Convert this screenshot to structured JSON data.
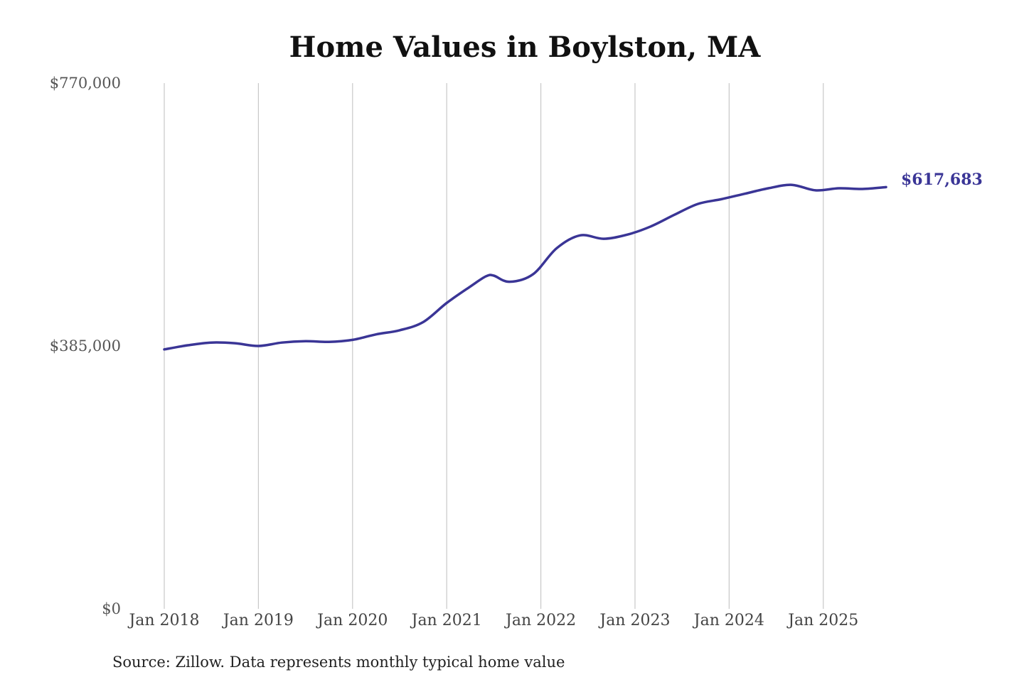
{
  "chart_data": {
    "type": "line",
    "title": "Home Values in Boylston, MA",
    "xlabel": "",
    "ylabel": "",
    "source": "Source: Zillow. Data represents monthly typical home value",
    "yticks": [
      {
        "value": 0,
        "label": "$0"
      },
      {
        "value": 385000,
        "label": "$385,000"
      },
      {
        "value": 770000,
        "label": "$770,000"
      }
    ],
    "ylim": [
      0,
      770000
    ],
    "xticks": [
      {
        "date": "2018-01",
        "label": "Jan 2018"
      },
      {
        "date": "2019-01",
        "label": "Jan 2019"
      },
      {
        "date": "2020-01",
        "label": "Jan 2020"
      },
      {
        "date": "2021-01",
        "label": "Jan 2021"
      },
      {
        "date": "2022-01",
        "label": "Jan 2022"
      },
      {
        "date": "2023-01",
        "label": "Jan 2023"
      },
      {
        "date": "2024-01",
        "label": "Jan 2024"
      },
      {
        "date": "2025-01",
        "label": "Jan 2025"
      }
    ],
    "xlim": [
      "2018-01",
      "2025-09"
    ],
    "grid": {
      "vertical": true,
      "horizontal": false
    },
    "colors": {
      "line": "#3a3596",
      "grid": "#c8c8c8"
    },
    "end_label": "$617,683",
    "series": [
      {
        "x": [
          "2018-01",
          "2018-04",
          "2018-07",
          "2018-10",
          "2019-01",
          "2019-04",
          "2019-07",
          "2019-10",
          "2020-01",
          "2020-04",
          "2020-07",
          "2020-10",
          "2021-01",
          "2021-04",
          "2021-06",
          "2021-07",
          "2021-09",
          "2021-12",
          "2022-03",
          "2022-06",
          "2022-09",
          "2022-12",
          "2023-03",
          "2023-06",
          "2023-09",
          "2023-12",
          "2024-03",
          "2024-06",
          "2024-09",
          "2024-12",
          "2025-03",
          "2025-06",
          "2025-09"
        ],
        "values": [
          380000,
          386000,
          390000,
          389000,
          385000,
          390000,
          392000,
          391000,
          394000,
          402000,
          408000,
          420000,
          448000,
          472000,
          487000,
          488000,
          479000,
          490000,
          528000,
          547000,
          542000,
          548000,
          560000,
          577000,
          593000,
          600000,
          608000,
          616000,
          621000,
          613000,
          616000,
          615000,
          617683
        ]
      }
    ]
  }
}
